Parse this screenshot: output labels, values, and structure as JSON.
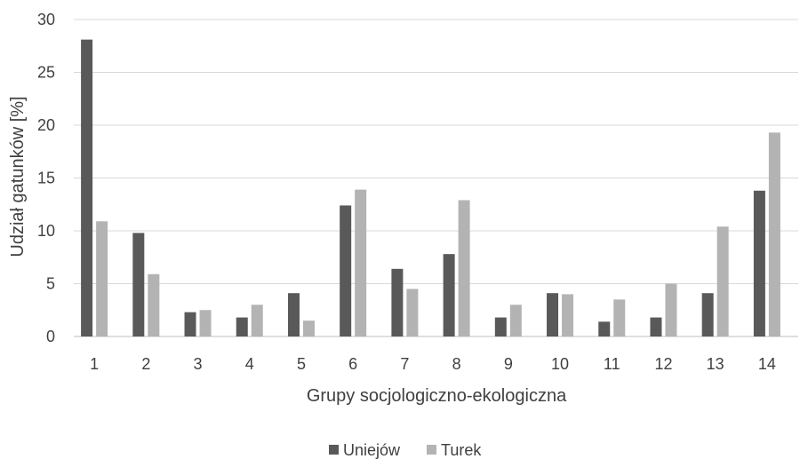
{
  "chart_data": {
    "type": "bar",
    "title": "",
    "xlabel": "Grupy socjologiczno-ekologiczna",
    "ylabel": "Udział gatunków [%]",
    "ylim": [
      0,
      30
    ],
    "yticks": [
      0,
      5,
      10,
      15,
      20,
      25,
      30
    ],
    "grid": true,
    "legend_position": "bottom",
    "categories": [
      "1",
      "2",
      "3",
      "4",
      "5",
      "6",
      "7",
      "8",
      "9",
      "10",
      "11",
      "12",
      "13",
      "14"
    ],
    "series": [
      {
        "name": "Uniejów",
        "color": "#595959",
        "values": [
          28.1,
          9.8,
          2.3,
          1.8,
          4.1,
          12.4,
          6.4,
          7.8,
          1.8,
          4.1,
          1.4,
          1.8,
          4.1,
          13.8
        ]
      },
      {
        "name": "Turek",
        "color": "#b3b3b3",
        "values": [
          10.9,
          5.9,
          2.5,
          3.0,
          1.5,
          13.9,
          4.5,
          12.9,
          3.0,
          4.0,
          3.5,
          5.0,
          10.4,
          19.3
        ]
      }
    ]
  }
}
